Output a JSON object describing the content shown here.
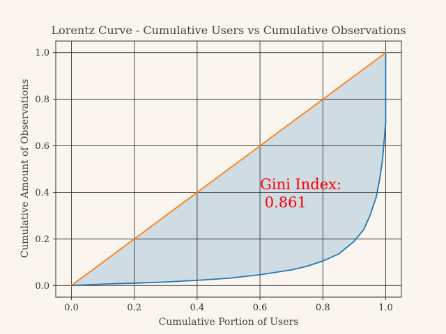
{
  "chart_data": {
    "type": "line",
    "title": "Lorentz Curve - Cumulative Users vs Cumulative Observations",
    "xlabel": "Cumulative Portion of Users",
    "ylabel": "Cumulative Amount of Observations",
    "xlim": [
      -0.05,
      1.05
    ],
    "ylim": [
      -0.05,
      1.05
    ],
    "xticks": [
      0.0,
      0.2,
      0.4,
      0.6,
      0.8,
      1.0
    ],
    "yticks": [
      0.0,
      0.2,
      0.4,
      0.6,
      0.8,
      1.0
    ],
    "xtick_labels": [
      "0.0",
      "0.2",
      "0.4",
      "0.6",
      "0.8",
      "1.0"
    ],
    "ytick_labels": [
      "0.0",
      "0.2",
      "0.4",
      "0.6",
      "0.8",
      "1.0"
    ],
    "grid": true,
    "series": [
      {
        "color": "#1f77b4",
        "x": [
          0.0,
          0.05,
          0.1,
          0.2,
          0.3,
          0.4,
          0.5,
          0.6,
          0.7,
          0.75,
          0.8,
          0.85,
          0.9,
          0.93,
          0.95,
          0.97,
          0.98,
          0.99,
          0.995,
          1.0,
          1.0
        ],
        "y": [
          0.0,
          0.003,
          0.006,
          0.01,
          0.015,
          0.022,
          0.031,
          0.046,
          0.067,
          0.083,
          0.105,
          0.135,
          0.19,
          0.24,
          0.3,
          0.38,
          0.45,
          0.54,
          0.62,
          0.7,
          1.0
        ]
      },
      {
        "color": "#ff7f0e",
        "x": [
          0.0,
          1.0
        ],
        "y": [
          0.0,
          1.0
        ]
      }
    ],
    "fill_between": {
      "color": "#cfdce3"
    },
    "annotation": {
      "line1": "Gini Index:",
      "line2": " 0.861",
      "x": 0.6,
      "y": 0.42,
      "color": "#ff0000"
    }
  }
}
